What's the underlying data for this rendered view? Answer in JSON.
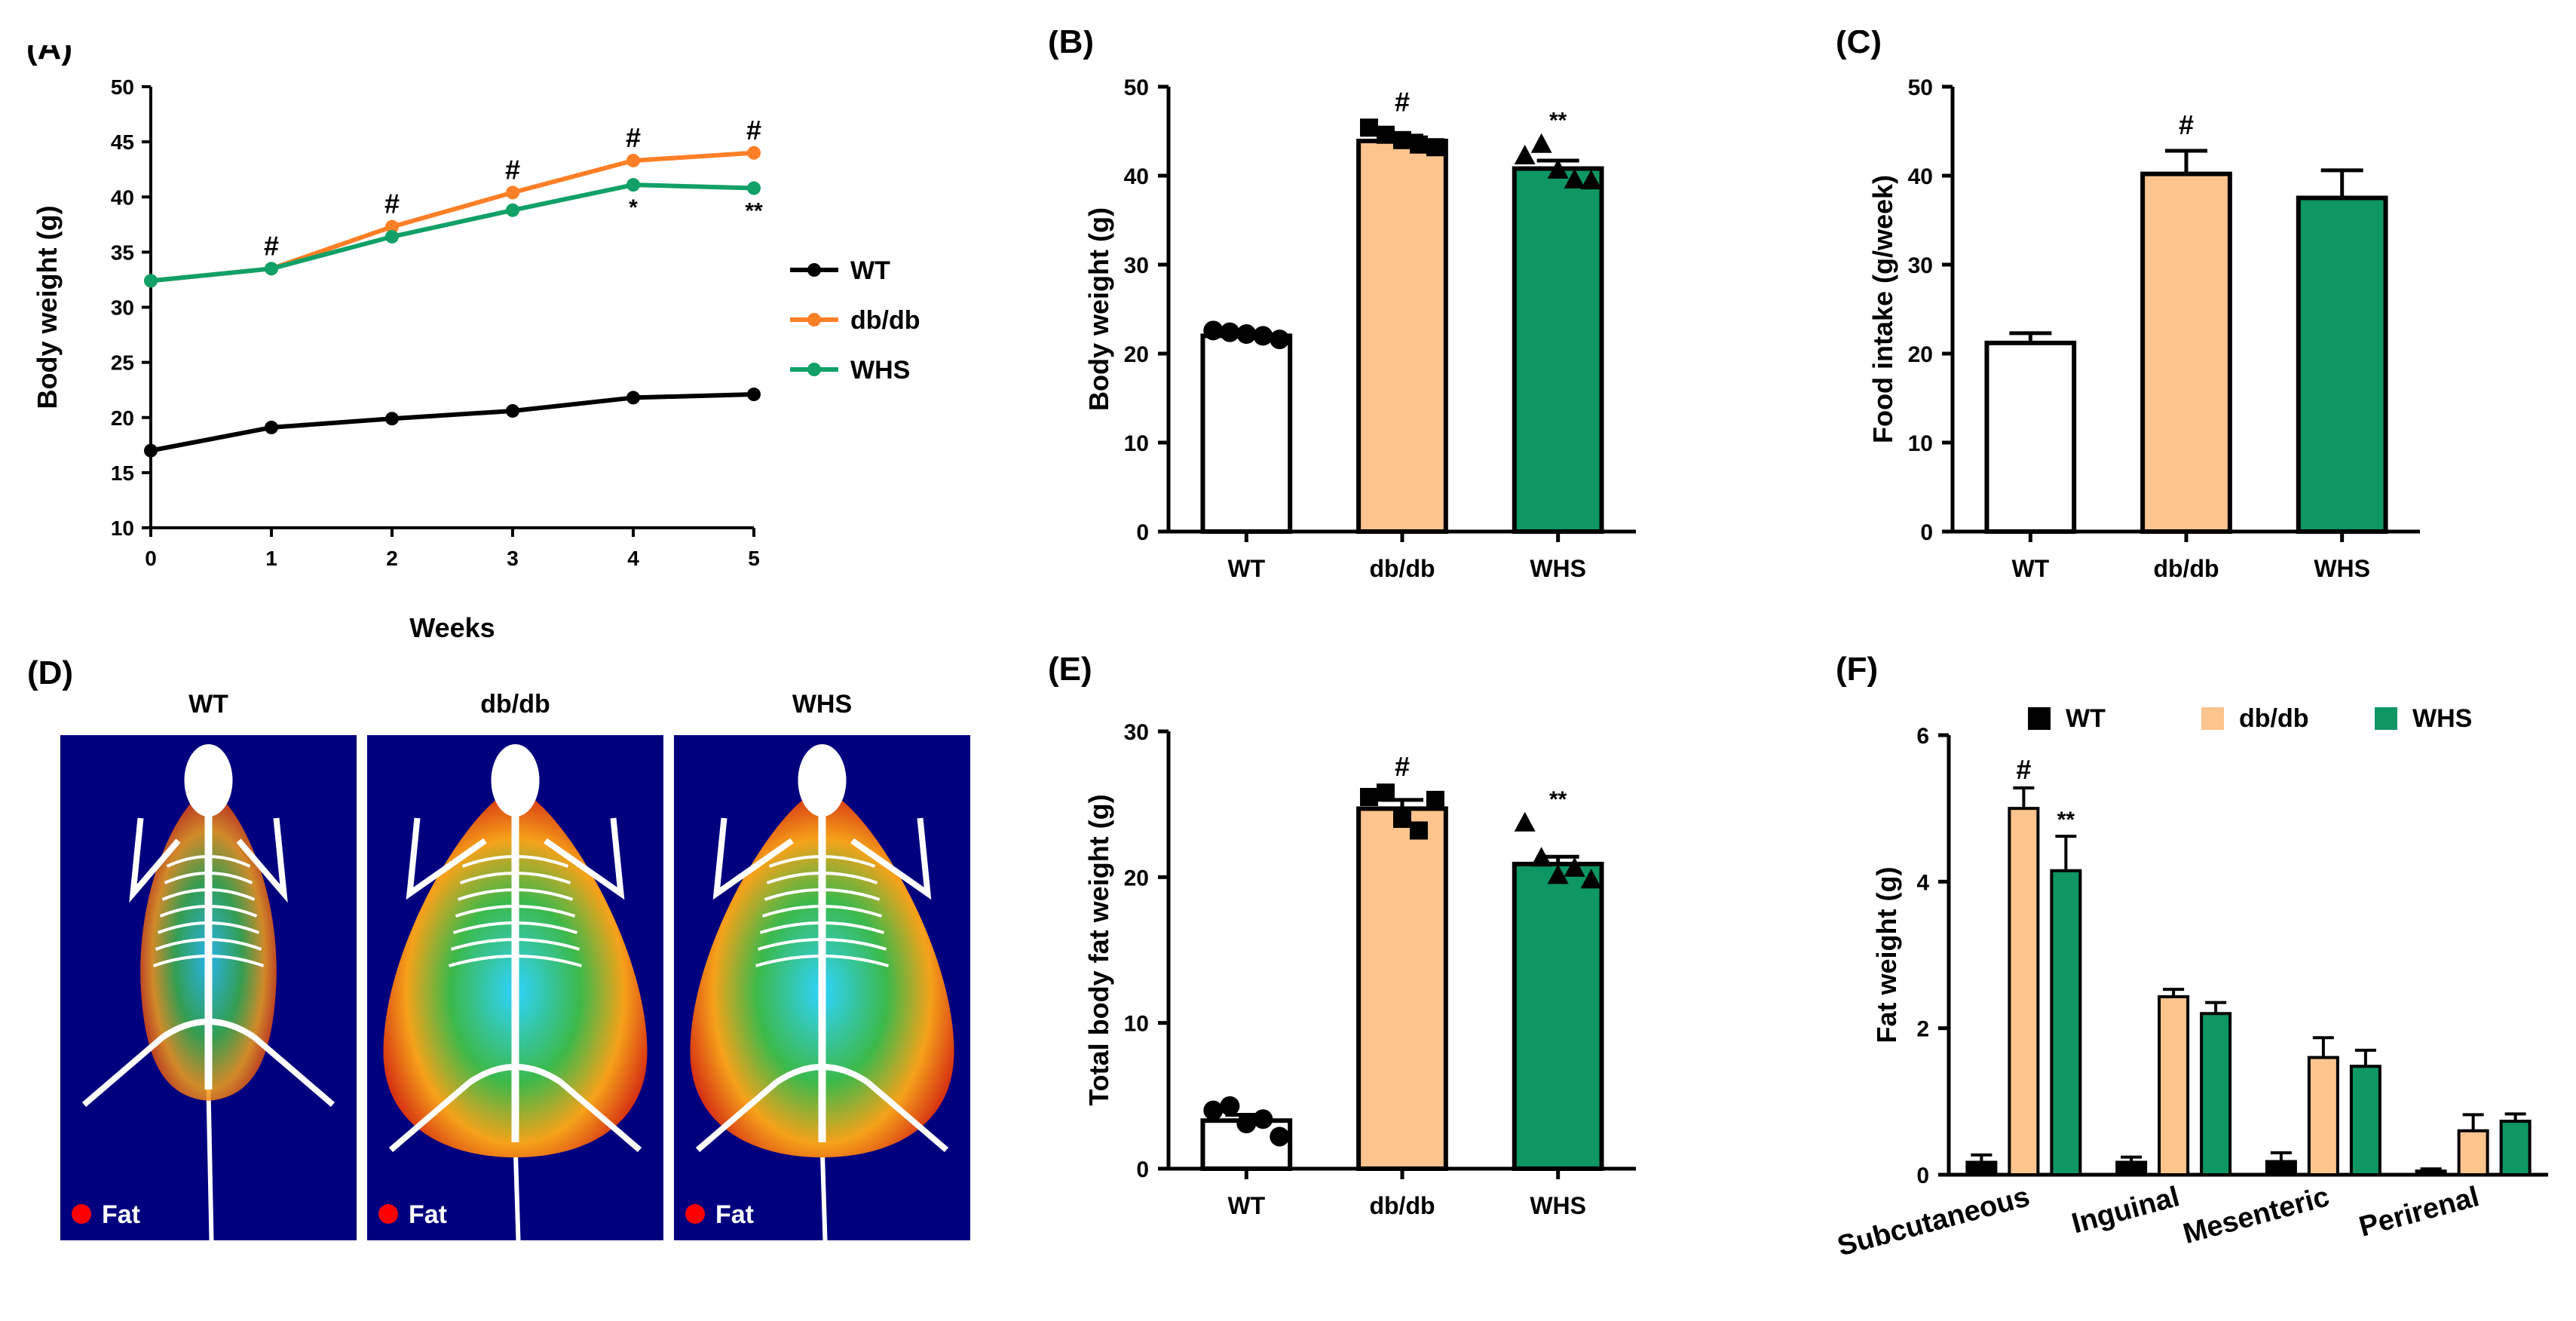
{
  "colors": {
    "wt": "#000000",
    "wt_fill": "#ffffff",
    "dbdb": "#ff7f27",
    "dbdb_fill": "#fdc48e",
    "whs": "#11a066",
    "whs_fill": "#0e9663",
    "scan_bg": "#00007e"
  },
  "chart_data": [
    {
      "panel": "(A)",
      "type": "line",
      "xlabel": "Weeks",
      "ylabel": "Body weight (g)",
      "x": [
        0,
        1,
        2,
        3,
        4,
        5
      ],
      "xlim": [
        0,
        5
      ],
      "ylim": [
        10,
        50
      ],
      "yticks": [
        10,
        15,
        20,
        25,
        30,
        35,
        40,
        45,
        50
      ],
      "series": [
        {
          "name": "WT",
          "color": "wt",
          "values": [
            17.0,
            19.1,
            19.9,
            20.6,
            21.8,
            22.1
          ]
        },
        {
          "name": "db/db",
          "color": "dbdb",
          "values": [
            32.4,
            33.5,
            37.3,
            40.4,
            43.3,
            44.0
          ]
        },
        {
          "name": "WHS",
          "color": "whs",
          "values": [
            32.4,
            33.5,
            36.4,
            38.8,
            41.1,
            40.8
          ]
        }
      ],
      "annotations": [
        {
          "text": "#",
          "x": 1,
          "anchor": "dbdb"
        },
        {
          "text": "#",
          "x": 2,
          "anchor": "dbdb"
        },
        {
          "text": "#",
          "x": 3,
          "anchor": "dbdb"
        },
        {
          "text": "#",
          "x": 4,
          "anchor": "dbdb"
        },
        {
          "text": "#",
          "x": 5,
          "anchor": "dbdb"
        },
        {
          "text": "*",
          "x": 4,
          "anchor": "below_whs"
        },
        {
          "text": "**",
          "x": 5,
          "anchor": "below_whs"
        }
      ],
      "legend": [
        "WT",
        "db/db",
        "WHS"
      ],
      "legend_position": "right"
    },
    {
      "panel": "(B)",
      "type": "bar",
      "ylabel": "Body weight (g)",
      "categories": [
        "WT",
        "db/db",
        "WHS"
      ],
      "values": [
        22.0,
        43.9,
        40.8
      ],
      "errors": [
        0.3,
        0.6,
        0.9
      ],
      "points": [
        [
          22.6,
          22.4,
          22.2,
          22.0,
          21.6
        ],
        [
          45.4,
          44.6,
          44.0,
          43.5,
          43.2
        ],
        [
          42.2,
          43.5,
          40.6,
          39.5,
          39.4
        ]
      ],
      "markers": [
        "circle",
        "square",
        "triangle"
      ],
      "fills": [
        "wt_fill",
        "dbdb_fill",
        "whs_fill"
      ],
      "annotations": [
        "",
        "#",
        "**"
      ],
      "ylim": [
        0,
        50
      ],
      "yticks": [
        0,
        10,
        20,
        30,
        40,
        50
      ]
    },
    {
      "panel": "(C)",
      "type": "bar",
      "ylabel": "Food intake (g/week)",
      "categories": [
        "WT",
        "db/db",
        "WHS"
      ],
      "values": [
        21.2,
        40.2,
        37.5
      ],
      "errors": [
        1.1,
        2.6,
        3.1
      ],
      "fills": [
        "wt_fill",
        "dbdb_fill",
        "whs_fill"
      ],
      "annotations": [
        "",
        "#",
        ""
      ],
      "ylim": [
        0,
        50
      ],
      "yticks": [
        0,
        10,
        20,
        30,
        40,
        50
      ]
    },
    {
      "panel": "(E)",
      "type": "bar",
      "ylabel": "Total body fat weight (g)",
      "categories": [
        "WT",
        "db/db",
        "WHS"
      ],
      "values": [
        3.3,
        24.7,
        20.9
      ],
      "errors": [
        0.4,
        0.6,
        0.5
      ],
      "points": [
        [
          4.0,
          4.3,
          3.1,
          3.4,
          2.2
        ],
        [
          25.5,
          25.8,
          24.0,
          23.2,
          25.3
        ],
        [
          23.7,
          21.3,
          20.1,
          20.6,
          19.8
        ]
      ],
      "markers": [
        "circle",
        "square",
        "triangle"
      ],
      "fills": [
        "wt_fill",
        "dbdb_fill",
        "whs_fill"
      ],
      "annotations": [
        "",
        "#",
        "**"
      ],
      "ylim": [
        0,
        30
      ],
      "yticks": [
        0,
        10,
        20,
        30
      ]
    },
    {
      "panel": "(F)",
      "type": "bar",
      "ylabel": "Fat weight (g)",
      "categories": [
        "Subcutaneous",
        "Inguinal",
        "Mesenteric",
        "Perirenal"
      ],
      "series": [
        {
          "name": "WT",
          "color": "wt",
          "values": [
            0.17,
            0.17,
            0.18,
            0.05
          ],
          "errors": [
            0.1,
            0.07,
            0.12,
            0.03
          ]
        },
        {
          "name": "db/db",
          "color": "dbdb_fill",
          "values": [
            5.0,
            2.43,
            1.6,
            0.6
          ],
          "errors": [
            0.28,
            0.1,
            0.27,
            0.22
          ]
        },
        {
          "name": "WHS",
          "color": "whs_fill",
          "values": [
            4.15,
            2.2,
            1.48,
            0.73
          ],
          "errors": [
            0.47,
            0.15,
            0.22,
            0.1
          ]
        }
      ],
      "annotations": [
        {
          "category": 0,
          "series": 1,
          "text": "#"
        },
        {
          "category": 0,
          "series": 2,
          "text": "**"
        }
      ],
      "ylim": [
        0,
        6
      ],
      "yticks": [
        0,
        2,
        4,
        6
      ],
      "legend": [
        "WT",
        "db/db",
        "WHS"
      ],
      "legend_position": "top"
    }
  ],
  "scan_panel": {
    "label": "(D)",
    "images": [
      {
        "title": "WT",
        "legend": "Fat",
        "body_size": "lean"
      },
      {
        "title": "db/db",
        "legend": "Fat",
        "body_size": "obese"
      },
      {
        "title": "WHS",
        "legend": "Fat",
        "body_size": "obese"
      }
    ]
  }
}
